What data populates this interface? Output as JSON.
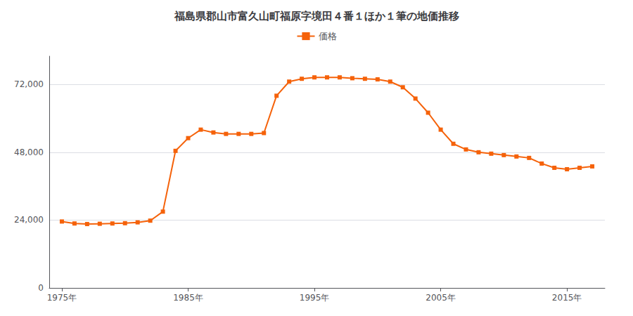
{
  "chart_data": {
    "type": "line",
    "title": "福島県郡山市富久山町福原字境田４番１ほか１筆の地価推移",
    "x": [
      1975,
      1976,
      1977,
      1978,
      1979,
      1980,
      1981,
      1982,
      1983,
      1984,
      1985,
      1986,
      1987,
      1988,
      1989,
      1990,
      1991,
      1992,
      1993,
      1994,
      1995,
      1996,
      1997,
      1998,
      1999,
      2000,
      2001,
      2002,
      2003,
      2004,
      2005,
      2006,
      2007,
      2008,
      2009,
      2010,
      2011,
      2012,
      2013,
      2014,
      2015,
      2016,
      2017
    ],
    "series": [
      {
        "name": "価格",
        "color": "#F5620A",
        "values": [
          23500,
          22800,
          22600,
          22700,
          22800,
          22900,
          23200,
          23800,
          27000,
          48500,
          53000,
          56000,
          55000,
          54500,
          54500,
          54500,
          54800,
          68000,
          73000,
          74000,
          74500,
          74500,
          74500,
          74200,
          74000,
          73800,
          73000,
          71000,
          67000,
          62000,
          56000,
          51000,
          49000,
          48000,
          47500,
          47000,
          46500,
          46000,
          44000,
          42500,
          42000,
          42500,
          43000
        ]
      }
    ],
    "xlim": [
      1974,
      2018
    ],
    "xticks": [
      {
        "value": 1975,
        "label": "1975年"
      },
      {
        "value": 1985,
        "label": "1985年"
      },
      {
        "value": 1995,
        "label": "1995年"
      },
      {
        "value": 2005,
        "label": "2005年"
      },
      {
        "value": 2015,
        "label": "2015年"
      }
    ],
    "ylim": [
      0,
      82000
    ],
    "yticks": [
      0,
      {
        "value": 24000,
        "label": "24,000"
      },
      {
        "value": 48000,
        "label": "48,000"
      },
      {
        "value": 72000,
        "label": "72,000"
      }
    ],
    "grid": true,
    "legend": "top",
    "marker": "square"
  }
}
